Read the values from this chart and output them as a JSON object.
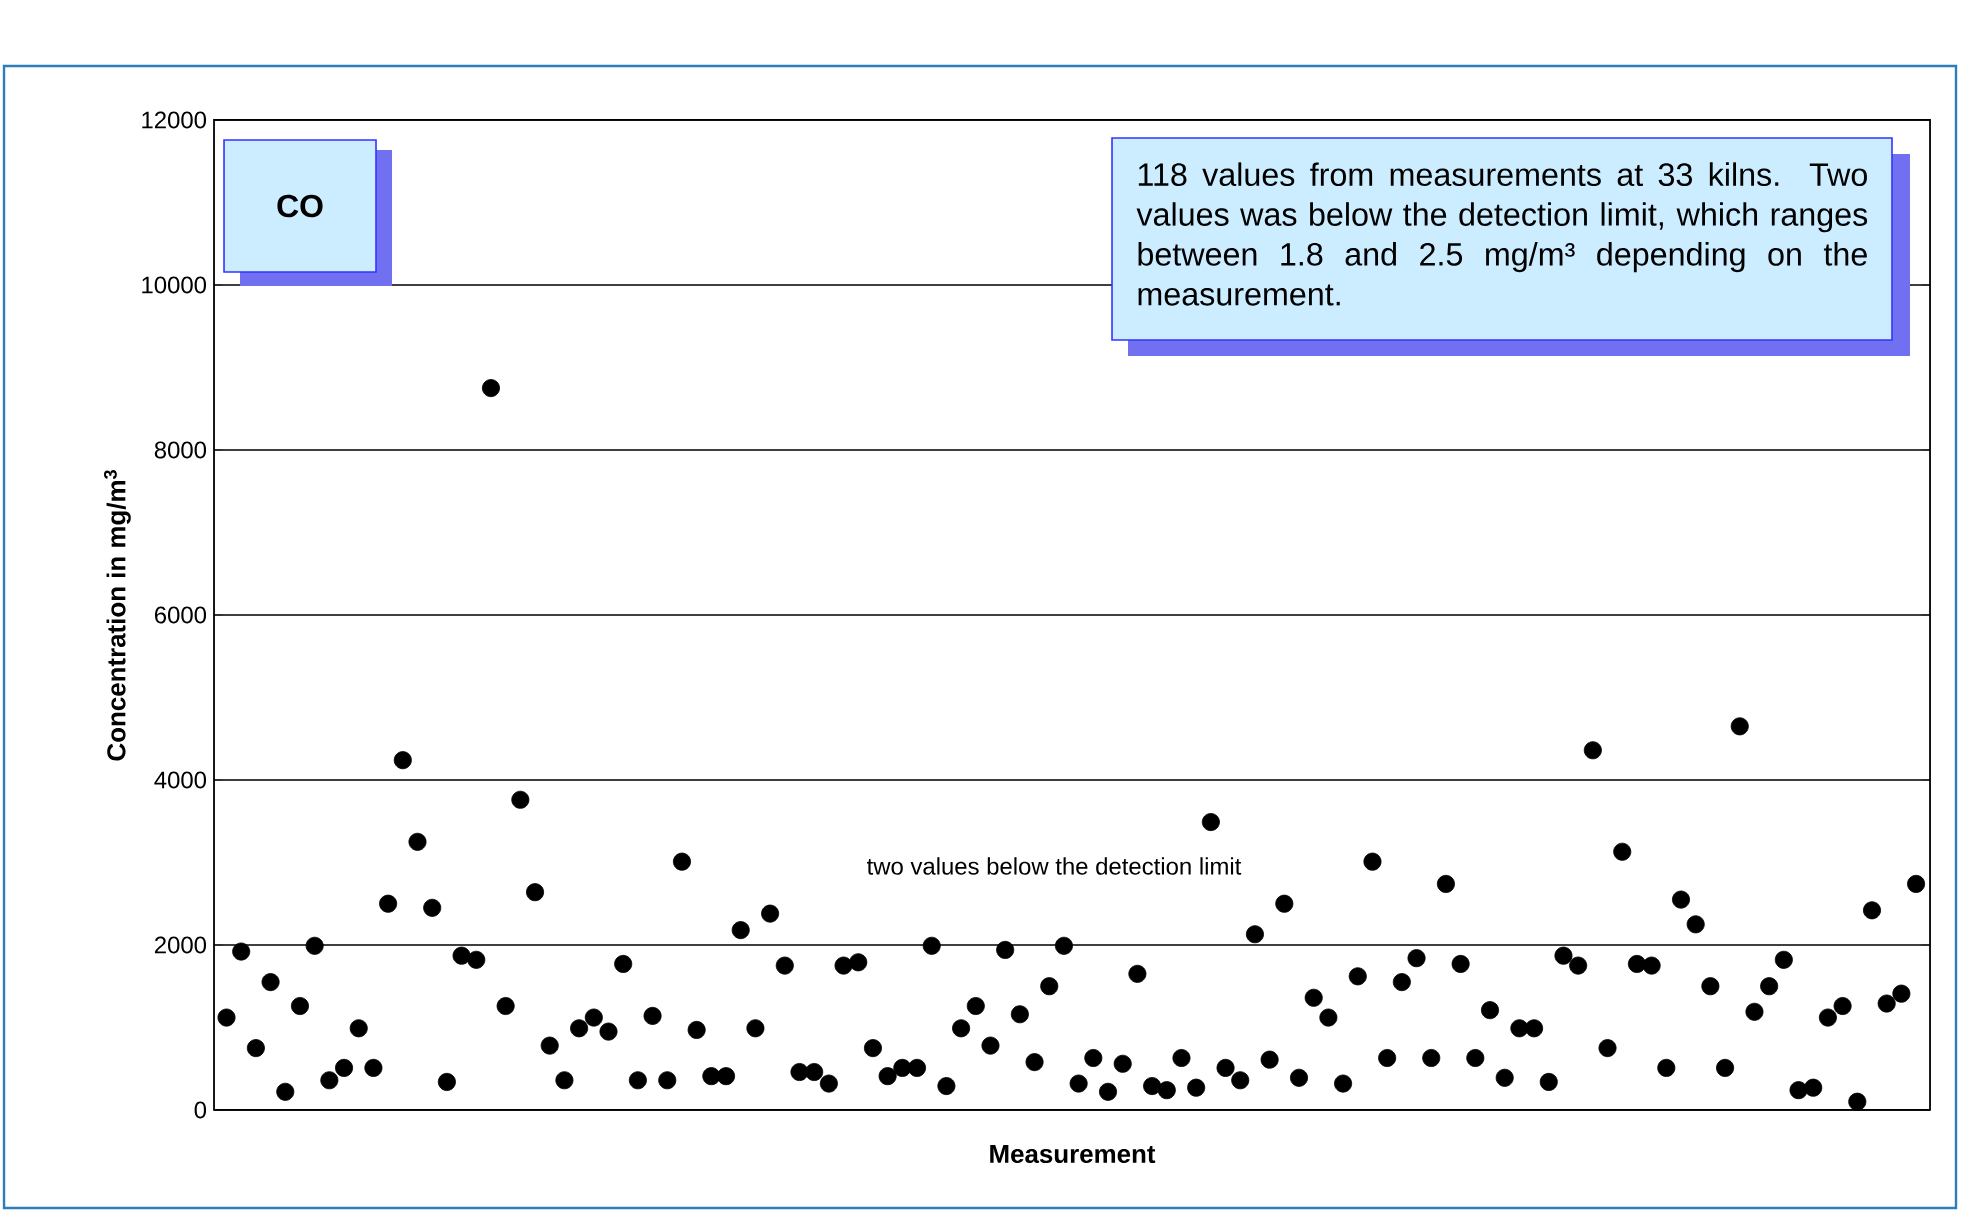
{
  "chart_data": {
    "type": "scatter",
    "title": "CO",
    "xlabel": "Measurement",
    "ylabel": "Concentration in mg/m$^{3}$",
    "annotations": [
      "118 values from measurements at 33 kilns. Two values was below the detection limit, which ranges between 1.8 and 2.5 mg/m³ depending on the measurement.",
      "two values below the detection limit"
    ],
    "categories": [
      null,
      null,
      null,
      null,
      null,
      null,
      null,
      null,
      null,
      null,
      null,
      null,
      null,
      null,
      null,
      null,
      null,
      null,
      null,
      null,
      null,
      null,
      null,
      null,
      null,
      null,
      null,
      null,
      null,
      null,
      null,
      null,
      null,
      null,
      null,
      null,
      null,
      null,
      null,
      null,
      null,
      null,
      null,
      null,
      null,
      null,
      null,
      null,
      null,
      null,
      null,
      null,
      null,
      null,
      null,
      null,
      null,
      null,
      null,
      null,
      null,
      null,
      null,
      null,
      null,
      null,
      null,
      null,
      null,
      null,
      null,
      null,
      null,
      null,
      null,
      null,
      null,
      null,
      null,
      null,
      null,
      null,
      null,
      null,
      null,
      null,
      null,
      null,
      null,
      null,
      null,
      null,
      null,
      null,
      null,
      null,
      null,
      null,
      null,
      null,
      null,
      null,
      null,
      null,
      null,
      null,
      null,
      null,
      null,
      null,
      null,
      null,
      null,
      null,
      null,
      null
    ],
    "values": [
      1120,
      1920,
      750,
      1550,
      220,
      1260,
      1990,
      360,
      510,
      990,
      510,
      2500,
      4240,
      3250,
      2450,
      340,
      1870,
      1820,
      8750,
      1260,
      3760,
      2640,
      780,
      360,
      990,
      1120,
      950,
      1770,
      360,
      1140,
      360,
      3010,
      970,
      410,
      410,
      2180,
      990,
      2380,
      1750,
      460,
      460,
      320,
      1750,
      1790,
      750,
      410,
      510,
      510,
      1990,
      290,
      990,
      1260,
      780,
      1940,
      1160,
      580,
      1500,
      1990,
      320,
      630,
      220,
      560,
      1650,
      290,
      240,
      630,
      270,
      3490,
      510,
      360,
      2130,
      610,
      2500,
      390,
      1360,
      1120,
      320,
      1620,
      3010,
      630,
      1550,
      1840,
      630,
      2740,
      1770,
      630,
      1210,
      390,
      990,
      990,
      340,
      1870,
      1750,
      4360,
      750,
      3130,
      1770,
      1750,
      510,
      2550,
      2250,
      1500,
      510,
      4650,
      1190,
      1500,
      1820,
      240,
      270,
      1120,
      1260,
      100,
      2420,
      1290,
      1410,
      2740
    ],
    "color": "#000000",
    "marker": "circle",
    "ylim": [
      0,
      12000
    ],
    "yticks": [
      0,
      2000,
      4000,
      6000,
      8000,
      10000,
      12000
    ],
    "grid": "y"
  }
}
